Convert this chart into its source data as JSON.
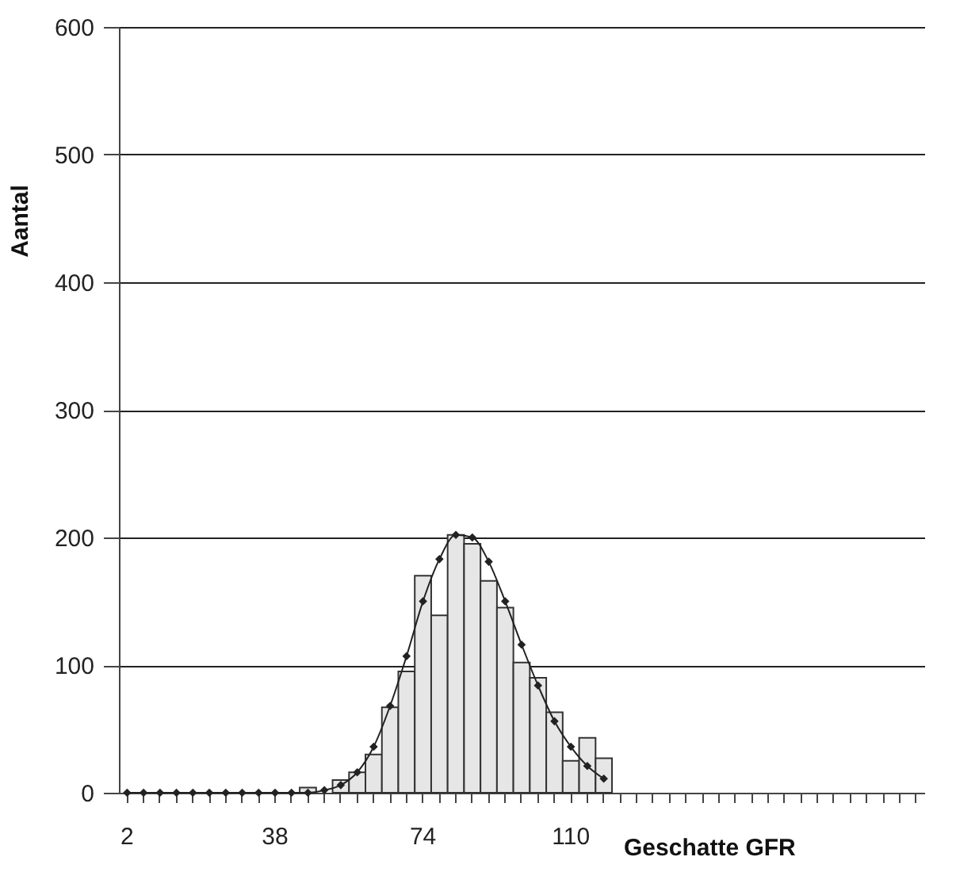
{
  "chart_data": {
    "type": "bar",
    "xlabel": "Geschatte GFR",
    "ylabel": "Aantal",
    "categories": [
      "2",
      null,
      null,
      null,
      null,
      null,
      null,
      null,
      null,
      "38",
      null,
      null,
      null,
      null,
      null,
      null,
      null,
      null,
      "74",
      null,
      null,
      null,
      null,
      null,
      null,
      null,
      null,
      "110",
      null,
      null,
      null,
      null,
      null,
      null,
      null,
      null,
      null,
      null,
      null,
      null,
      null,
      null,
      null,
      null,
      null,
      null,
      null,
      null,
      null
    ],
    "series": [
      {
        "color": "#e6e6e6",
        "values": [
          null,
          null,
          null,
          null,
          null,
          null,
          null,
          null,
          null,
          null,
          null,
          4,
          null,
          10,
          16,
          30,
          67,
          95,
          170,
          139,
          202,
          195,
          166,
          145,
          102,
          90,
          63,
          25,
          43,
          27,
          null,
          null,
          null,
          null,
          null,
          null,
          null,
          null,
          null,
          null,
          null,
          null,
          null,
          null,
          null,
          null,
          null,
          null,
          null
        ]
      },
      {
        "type": "line",
        "color": "#222222",
        "values": [
          0,
          0,
          0,
          0,
          0,
          0,
          0,
          0,
          0,
          0,
          0,
          0,
          2,
          6,
          16,
          36,
          68,
          107,
          150,
          183,
          202,
          200,
          181,
          150,
          116,
          84,
          56,
          36,
          21,
          11,
          null,
          null,
          null,
          null,
          null,
          null,
          null,
          null,
          null,
          null,
          null,
          null,
          null,
          null,
          null,
          null,
          null,
          null,
          null
        ]
      }
    ],
    "ylim": [
      0,
      600
    ],
    "yticks": [
      0,
      100,
      200,
      300,
      400,
      500,
      600
    ],
    "grid": "y",
    "marker": "diamond",
    "line_style": "solid"
  }
}
